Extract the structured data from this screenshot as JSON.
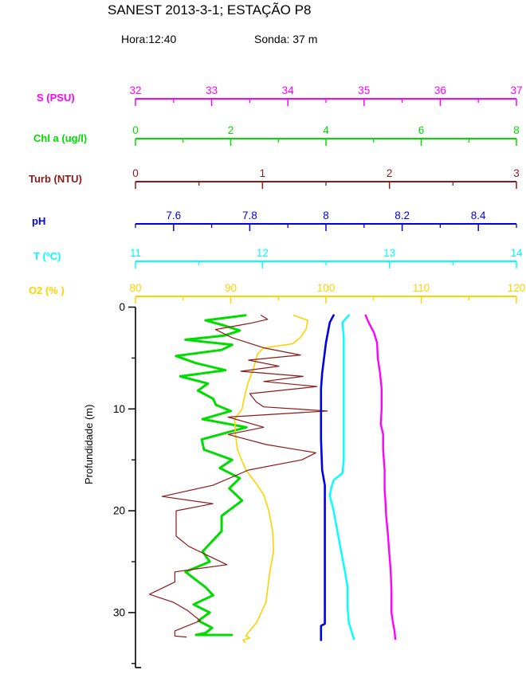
{
  "header": {
    "title": "SANEST 2013-3-1; ESTAÇÃO P8",
    "hora": "Hora:12:40",
    "sonda": "Sonda: 37 m"
  },
  "chart_data": {
    "type": "line",
    "orientation": "vertical-profile",
    "title": "SANEST 2013-3-1; ESTAÇÃO P8",
    "grid": false,
    "legend": "none (each top axis is colored to match its series)",
    "depth_axis": {
      "label": "Profundidade (m)",
      "min": 0,
      "max": 35.4,
      "major_ticks": [
        0,
        10,
        20,
        30
      ],
      "minor_ticks": [
        5,
        15,
        25,
        35
      ],
      "color": "#000000"
    },
    "axes": [
      {
        "id": "S",
        "label": "S (PSU)",
        "min": 32,
        "max": 37,
        "major_ticks": [
          32,
          33,
          34,
          35,
          36,
          37
        ],
        "minor_ticks": [
          32.5,
          33.5,
          34.5,
          35.5,
          36.5
        ],
        "color": "#FF00FF"
      },
      {
        "id": "Chl",
        "label": "Chl a (ug/l)",
        "min": 0,
        "max": 8,
        "major_ticks": [
          0,
          2,
          4,
          6,
          8
        ],
        "minor_ticks": [
          1,
          3,
          5,
          7
        ],
        "color": "#00DC00"
      },
      {
        "id": "Turb",
        "label": "Turb (NTU)",
        "min": 0,
        "max": 3,
        "major_ticks": [
          0,
          1,
          2,
          3
        ],
        "minor_ticks": [
          0.5,
          1.5,
          2.5
        ],
        "color": "#8B1A1A"
      },
      {
        "id": "pH",
        "label": "pH",
        "min": 7.5,
        "max": 8.5,
        "major_ticks": [
          7.6,
          7.8,
          8,
          8.2,
          8.4
        ],
        "minor_ticks": [
          7.5,
          7.7,
          7.9,
          8.1,
          8.3,
          8.5
        ],
        "color": "#0000E6"
      },
      {
        "id": "T",
        "label": "T (ºC)",
        "min": 11,
        "max": 14,
        "major_ticks": [
          11,
          12,
          13,
          14
        ],
        "minor_ticks": [
          11.5,
          12.5,
          13.5
        ],
        "color": "#00FFFF"
      },
      {
        "id": "O2",
        "label": "O2 (% )",
        "min": 80,
        "max": 120,
        "major_ticks": [
          80,
          90,
          100,
          110,
          120
        ],
        "minor_ticks": [
          85,
          95,
          105,
          115
        ],
        "color": "#FFD200"
      }
    ],
    "series": [
      {
        "name": "Chl a (ug/l)",
        "axis_id": "Chl",
        "color": "#00DC00",
        "points": [
          [
            0.8,
            2.31
          ],
          [
            1.3,
            1.47
          ],
          [
            1.8,
            1.86
          ],
          [
            2.3,
            2.19
          ],
          [
            2.8,
            1.86
          ],
          [
            3.2,
            1.05
          ],
          [
            3.7,
            2.03
          ],
          [
            4.2,
            1.81
          ],
          [
            4.8,
            0.85
          ],
          [
            5.5,
            1.27
          ],
          [
            6.2,
            1.89
          ],
          [
            6.8,
            0.94
          ],
          [
            7.5,
            1.52
          ],
          [
            8.2,
            1.31
          ],
          [
            9,
            1.63
          ],
          [
            9.6,
            1.69
          ],
          [
            10.2,
            2.0
          ],
          [
            11,
            1.41
          ],
          [
            11.8,
            2.33
          ],
          [
            13,
            1.39
          ],
          [
            14,
            1.44
          ],
          [
            15,
            2.03
          ],
          [
            15.8,
            1.77
          ],
          [
            16.8,
            2.19
          ],
          [
            17.8,
            1.97
          ],
          [
            19,
            2.24
          ],
          [
            20.5,
            1.81
          ],
          [
            22,
            1.81
          ],
          [
            24,
            1.41
          ],
          [
            25,
            1.56
          ],
          [
            26,
            1.05
          ],
          [
            27.5,
            1.47
          ],
          [
            28.3,
            1.63
          ],
          [
            29.2,
            1.22
          ],
          [
            30,
            1.56
          ],
          [
            30.8,
            1.32
          ],
          [
            31.5,
            1.61
          ],
          [
            32,
            1.47
          ],
          [
            32.2,
            1.27
          ],
          [
            32.2,
            2.02
          ]
        ]
      },
      {
        "name": "O2 (% )",
        "axis_id": "O2",
        "color": "#FFD200",
        "points": [
          [
            0.8,
            96.6
          ],
          [
            1.3,
            98.1
          ],
          [
            2.2,
            97.9
          ],
          [
            3,
            97.3
          ],
          [
            3.6,
            96.5
          ],
          [
            4,
            93.5
          ],
          [
            4.6,
            92.8
          ],
          [
            6,
            92.4
          ],
          [
            7.5,
            91.8
          ],
          [
            9,
            91.4
          ],
          [
            10,
            91.2
          ],
          [
            11,
            90.4
          ],
          [
            12.5,
            90.5
          ],
          [
            14,
            90.7
          ],
          [
            16,
            91.6
          ],
          [
            17.5,
            92.8
          ],
          [
            18.5,
            93.5
          ],
          [
            20,
            94
          ],
          [
            22,
            94.4
          ],
          [
            24,
            94.5
          ],
          [
            26,
            94.1
          ],
          [
            27.5,
            93.9
          ],
          [
            29,
            93.7
          ],
          [
            30,
            93.2
          ],
          [
            31,
            92.7
          ],
          [
            32,
            91.8
          ],
          [
            32.3,
            91.6
          ],
          [
            32.5,
            92
          ],
          [
            32.7,
            91.3
          ],
          [
            32.9,
            91.5
          ]
        ]
      },
      {
        "name": "Turb (NTU)",
        "axis_id": "Turb",
        "color": "#8B1A1A",
        "points": [
          [
            0.8,
            0.99
          ],
          [
            1.2,
            1.04
          ],
          [
            1.6,
            0.9
          ],
          [
            2.2,
            0.63
          ],
          [
            3,
            0.76
          ],
          [
            4,
            1.01
          ],
          [
            4.7,
            1.3
          ],
          [
            5.2,
            0.89
          ],
          [
            5.8,
            1.13
          ],
          [
            6.3,
            0.83
          ],
          [
            6.8,
            1.32
          ],
          [
            7.3,
            1.01
          ],
          [
            7.8,
            1.43
          ],
          [
            8.5,
            0.9
          ],
          [
            9.3,
            0.95
          ],
          [
            9.8,
            1.01
          ],
          [
            10.2,
            1.51
          ],
          [
            10.8,
            0.73
          ],
          [
            11.8,
            1.01
          ],
          [
            12.5,
            0.73
          ],
          [
            13.5,
            1.03
          ],
          [
            14.3,
            1.42
          ],
          [
            15,
            1.31
          ],
          [
            16,
            0.89
          ],
          [
            17.5,
            0.61
          ],
          [
            18.6,
            0.21
          ],
          [
            19.3,
            0.61
          ],
          [
            20,
            0.32
          ],
          [
            22.5,
            0.32
          ],
          [
            23.5,
            0.42
          ],
          [
            25.3,
            0.72
          ],
          [
            26,
            0.31
          ],
          [
            27,
            0.31
          ],
          [
            28.2,
            0.11
          ],
          [
            29,
            0.3
          ],
          [
            29.8,
            0.41
          ],
          [
            30.8,
            0.51
          ],
          [
            31.8,
            0.31
          ],
          [
            32.3,
            0.31
          ],
          [
            32.4,
            0.4
          ]
        ]
      },
      {
        "name": "pH",
        "axis_id": "pH",
        "color": "#0000E6",
        "points": [
          [
            0.8,
            8.02
          ],
          [
            1.5,
            8.01
          ],
          [
            2.5,
            8.005
          ],
          [
            3.5,
            8.0
          ],
          [
            5,
            7.995
          ],
          [
            6.5,
            7.99
          ],
          [
            8,
            7.987
          ],
          [
            10,
            7.987
          ],
          [
            13,
            7.987
          ],
          [
            16,
            7.99
          ],
          [
            17.5,
            7.997
          ],
          [
            20,
            7.997
          ],
          [
            23,
            7.997
          ],
          [
            26,
            7.997
          ],
          [
            29,
            7.997
          ],
          [
            31.1,
            7.997
          ],
          [
            31.3,
            7.987
          ],
          [
            32.7,
            7.987
          ]
        ]
      },
      {
        "name": "T (ºC)",
        "axis_id": "T",
        "color": "#00FFFF",
        "points": [
          [
            0.8,
            12.68
          ],
          [
            1.5,
            12.63
          ],
          [
            3,
            12.64
          ],
          [
            6,
            12.64
          ],
          [
            9,
            12.64
          ],
          [
            12,
            12.64
          ],
          [
            15,
            12.64
          ],
          [
            16.3,
            12.63
          ],
          [
            17,
            12.56
          ],
          [
            17.8,
            12.54
          ],
          [
            18.5,
            12.53
          ],
          [
            20,
            12.56
          ],
          [
            22,
            12.59
          ],
          [
            24,
            12.62
          ],
          [
            26,
            12.65
          ],
          [
            27.5,
            12.67
          ],
          [
            29.5,
            12.67
          ],
          [
            31,
            12.68
          ],
          [
            31.8,
            12.7
          ],
          [
            32.6,
            12.72
          ]
        ]
      },
      {
        "name": "S (PSU)",
        "axis_id": "S",
        "color": "#FF00FF",
        "points": [
          [
            0.8,
            35.02
          ],
          [
            1.5,
            35.06
          ],
          [
            2.5,
            35.13
          ],
          [
            3.5,
            35.17
          ],
          [
            5,
            35.18
          ],
          [
            6.5,
            35.21
          ],
          [
            8,
            35.23
          ],
          [
            10,
            35.23
          ],
          [
            11.5,
            35.22
          ],
          [
            12.5,
            35.25
          ],
          [
            14,
            35.25
          ],
          [
            16,
            35.27
          ],
          [
            18,
            35.27
          ],
          [
            19,
            35.28
          ],
          [
            20.5,
            35.29
          ],
          [
            22,
            35.31
          ],
          [
            24,
            35.33
          ],
          [
            26,
            35.35
          ],
          [
            28,
            35.36
          ],
          [
            30,
            35.36
          ],
          [
            31,
            35.38
          ],
          [
            31.8,
            35.4
          ],
          [
            32.6,
            35.41
          ]
        ]
      }
    ]
  }
}
